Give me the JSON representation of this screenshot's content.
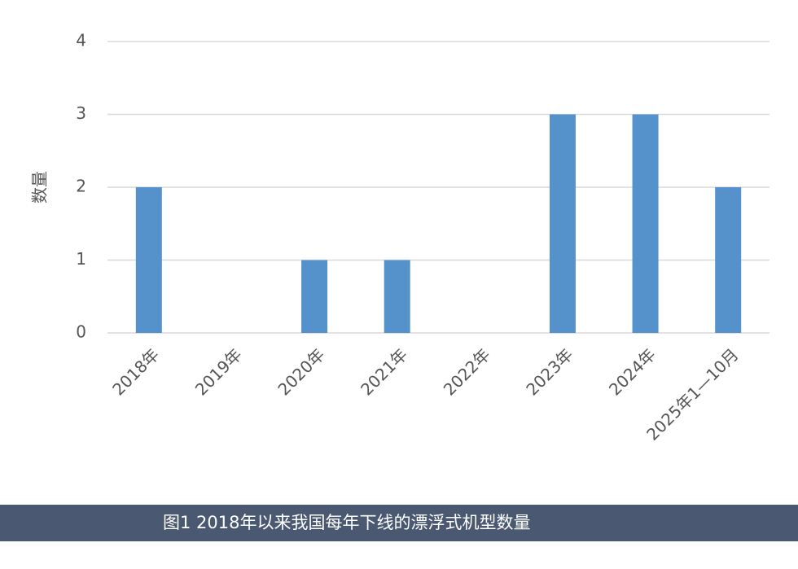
{
  "chart_data": {
    "type": "bar",
    "title": "图1 2018年以来我国每年下线的漂浮式机型数量",
    "y_label": "数量",
    "categories": [
      "2018年",
      "2019年",
      "2020年",
      "2021年",
      "2022年",
      "2023年",
      "2024年",
      "2025年1—10月"
    ],
    "values": [
      2,
      0,
      1,
      1,
      0,
      3,
      3,
      2
    ],
    "color": "#5592cb",
    "ylim": [
      0,
      4
    ],
    "yticks": [
      0,
      1,
      2,
      3,
      4
    ],
    "grid": true
  }
}
